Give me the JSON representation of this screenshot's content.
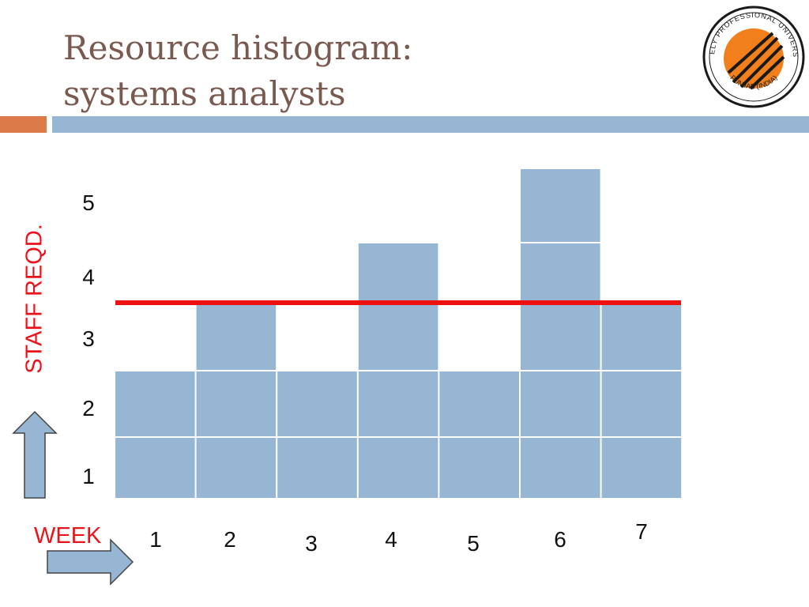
{
  "title": {
    "line1": "Resource histogram:",
    "line2": "systems analysts"
  },
  "logo": {
    "ring_text_top": "LOVELY PROFESSIONAL UNIVERSITY",
    "ring_text_bottom": "PUNJAB (INDIA)",
    "colors": {
      "ring": "#1a1a1a",
      "orange": "#f07f1c",
      "background": "#ffffff"
    }
  },
  "chart_data": {
    "type": "bar",
    "title": "Resource histogram: systems analysts",
    "xlabel": "WEEK",
    "ylabel": "STAFF REQD.",
    "categories": [
      "1",
      "2",
      "3",
      "4",
      "5",
      "6",
      "7"
    ],
    "values": [
      2,
      3,
      2,
      4,
      2,
      5,
      3
    ],
    "y_tick_labels": [
      "1",
      "2",
      "3",
      "4",
      "5"
    ],
    "ylim": [
      0,
      5
    ],
    "stacked_unit_cells": true,
    "reference_line": {
      "y": 3,
      "color": "#ee1111"
    },
    "bar_color": "#97b6d3",
    "grid": false
  },
  "arrows": {
    "up_arrow_icon": "arrow-up-icon",
    "right_arrow_icon": "arrow-right-icon",
    "fill": "#97b6d3"
  }
}
